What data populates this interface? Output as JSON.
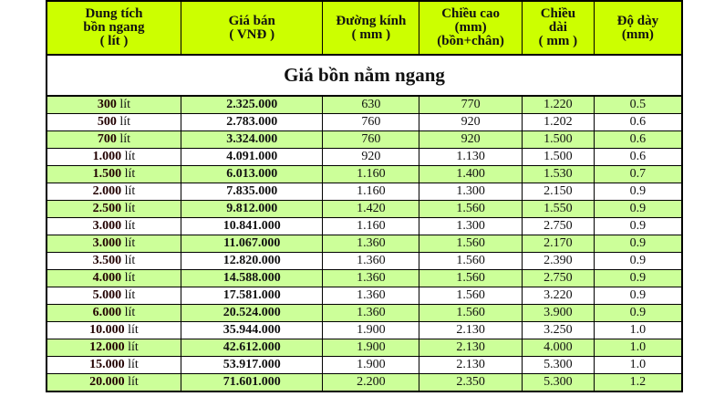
{
  "headers": [
    "Dung tích\nbồn ngang\n( lít )",
    "Giá bán\n( VNĐ )",
    "Đường kính\n( mm )",
    "Chiều cao\n(mm)\n(bồn+chân)",
    "Chiều\ndài\n( mm )",
    "Độ dày\n(mm)"
  ],
  "title": "Giá bồn nằm ngang",
  "unit": "lít",
  "colors": {
    "header": "#ccff00",
    "row_alt": "#ccff99"
  },
  "rows": [
    [
      "300",
      "2.325.000",
      "630",
      "770",
      "1.220",
      "0.5"
    ],
    [
      "500",
      "2.783.000",
      "760",
      "920",
      "1.202",
      "0.6"
    ],
    [
      "700",
      "3.324.000",
      "760",
      "920",
      "1.500",
      "0.6"
    ],
    [
      "1.000",
      "4.091.000",
      "920",
      "1.130",
      "1.500",
      "0.6"
    ],
    [
      "1.500",
      "6.013.000",
      "1.160",
      "1.400",
      "1.530",
      "0.7"
    ],
    [
      "2.000",
      "7.835.000",
      "1.160",
      "1.300",
      "2.150",
      "0.9"
    ],
    [
      "2.500",
      "9.812.000",
      "1.420",
      "1.560",
      "1.550",
      "0.9"
    ],
    [
      "3.000",
      "10.841.000",
      "1.160",
      "1.300",
      "2.750",
      "0.9"
    ],
    [
      "3.000",
      "11.067.000",
      "1.360",
      "1.560",
      "2.170",
      "0.9"
    ],
    [
      "3.500",
      "12.820.000",
      "1.360",
      "1.560",
      "2.390",
      "0.9"
    ],
    [
      "4.000",
      "14.588.000",
      "1.360",
      "1.560",
      "2.750",
      "0.9"
    ],
    [
      "5.000",
      "17.581.000",
      "1.360",
      "1.560",
      "3.220",
      "0.9"
    ],
    [
      "6.000",
      "20.524.000",
      "1.360",
      "1.560",
      "3.900",
      "0.9"
    ],
    [
      "10.000",
      "35.944.000",
      "1.900",
      "2.130",
      "3.250",
      "1.0"
    ],
    [
      "12.000",
      "42.612.000",
      "1.900",
      "2.130",
      "4.000",
      "1.0"
    ],
    [
      "15.000",
      "53.917.000",
      "1.900",
      "2.130",
      "5.300",
      "1.0"
    ],
    [
      "20.000",
      "71.601.000",
      "2.200",
      "2.350",
      "5.300",
      "1.2"
    ]
  ]
}
